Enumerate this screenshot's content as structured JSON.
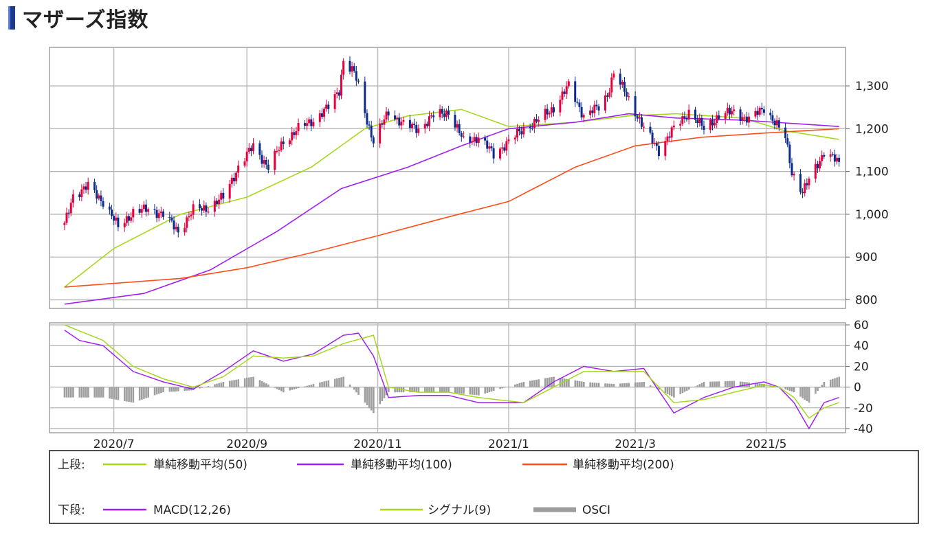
{
  "page": {
    "title": "マザーズ指数"
  },
  "colors": {
    "up_candle": "#e8003d",
    "down_candle": "#0b2a8c",
    "sma50": "#a6d81e",
    "sma100": "#a020f0",
    "sma200": "#ff4d1a",
    "macd": "#a020f0",
    "signal": "#a6d81e",
    "osci": "#9e9e9e",
    "grid": "#b5b5b5"
  },
  "legend": {
    "upper_label": "上段:",
    "lower_label": "下段:",
    "sma50": "単純移動平均(50)",
    "sma100": "単純移動平均(100)",
    "sma200": "単純移動平均(200)",
    "macd": "MACD(12,26)",
    "signal": "シグナル(9)",
    "osci": "OSCI"
  },
  "chart_data": [
    {
      "type": "candlestick",
      "panel": "upper",
      "ylim": [
        780,
        1390
      ],
      "yticks": [
        "800",
        "900",
        "1,000",
        "1,100",
        "1,200",
        "1,300"
      ],
      "ytick_values": [
        800,
        900,
        1000,
        1100,
        1200,
        1300
      ],
      "x_range": [
        "2020-06-01",
        "2021-06-07"
      ],
      "xticks": [
        "2020/7",
        "2020/9",
        "2020/11",
        "2021/1",
        "2021/3",
        "2021/5"
      ],
      "xtick_dates": [
        "2020-07-01",
        "2020-09-01",
        "2020-11-01",
        "2021-01-01",
        "2021-03-01",
        "2021-05-01"
      ],
      "close_series": {
        "dates": [
          "2020-06-08",
          "2020-06-12",
          "2020-06-19",
          "2020-06-26",
          "2020-07-03",
          "2020-07-10",
          "2020-07-17",
          "2020-07-24",
          "2020-07-31",
          "2020-08-07",
          "2020-08-14",
          "2020-08-21",
          "2020-08-28",
          "2020-09-04",
          "2020-09-11",
          "2020-09-18",
          "2020-09-25",
          "2020-10-02",
          "2020-10-09",
          "2020-10-14",
          "2020-10-16",
          "2020-10-21",
          "2020-10-23",
          "2020-10-27",
          "2020-10-30",
          "2020-11-06",
          "2020-11-13",
          "2020-11-20",
          "2020-11-27",
          "2020-12-04",
          "2020-12-11",
          "2020-12-18",
          "2020-12-25",
          "2021-01-08",
          "2021-01-15",
          "2021-01-22",
          "2021-01-29",
          "2021-02-05",
          "2021-02-12",
          "2021-02-16",
          "2021-02-19",
          "2021-02-26",
          "2021-03-05",
          "2021-03-12",
          "2021-03-19",
          "2021-03-26",
          "2021-04-02",
          "2021-04-09",
          "2021-04-16",
          "2021-04-23",
          "2021-04-30",
          "2021-05-07",
          "2021-05-10",
          "2021-05-13",
          "2021-05-18",
          "2021-05-24",
          "2021-05-28",
          "2021-06-04"
        ],
        "close": [
          975,
          1045,
          1065,
          1030,
          970,
          1005,
          1012,
          1000,
          960,
          1010,
          1015,
          1040,
          1110,
          1160,
          1110,
          1170,
          1200,
          1220,
          1250,
          1290,
          1360,
          1330,
          1300,
          1220,
          1170,
          1240,
          1210,
          1200,
          1230,
          1240,
          1170,
          1180,
          1140,
          1200,
          1220,
          1250,
          1300,
          1230,
          1250,
          1280,
          1330,
          1270,
          1200,
          1150,
          1200,
          1240,
          1200,
          1230,
          1240,
          1220,
          1250,
          1200,
          1180,
          1100,
          1050,
          1110,
          1145,
          1120
        ]
      },
      "series": [
        {
          "name": "単純移動平均(50)",
          "dates": [
            "2020-06-08",
            "2020-07-01",
            "2020-08-01",
            "2020-09-01",
            "2020-10-01",
            "2020-10-26",
            "2020-11-15",
            "2020-12-10",
            "2021-01-01",
            "2021-02-01",
            "2021-02-26",
            "2021-03-20",
            "2021-04-20",
            "2021-05-10",
            "2021-06-04"
          ],
          "values": [
            830,
            920,
            1000,
            1040,
            1110,
            1200,
            1230,
            1245,
            1205,
            1215,
            1230,
            1235,
            1225,
            1195,
            1175
          ]
        },
        {
          "name": "単純移動平均(100)",
          "dates": [
            "2020-06-08",
            "2020-07-15",
            "2020-08-15",
            "2020-09-15",
            "2020-10-15",
            "2020-11-15",
            "2020-12-10",
            "2021-01-01",
            "2021-02-01",
            "2021-02-26",
            "2021-03-20",
            "2021-04-20",
            "2021-05-20",
            "2021-06-04"
          ],
          "values": [
            790,
            815,
            870,
            960,
            1060,
            1110,
            1160,
            1200,
            1215,
            1235,
            1225,
            1220,
            1210,
            1205
          ]
        },
        {
          "name": "単純移動平均(200)",
          "dates": [
            "2020-06-08",
            "2020-08-01",
            "2020-09-01",
            "2020-10-01",
            "2020-11-01",
            "2020-12-01",
            "2021-01-01",
            "2021-02-01",
            "2021-03-01",
            "2021-04-01",
            "2021-05-01",
            "2021-06-04"
          ],
          "values": [
            830,
            850,
            875,
            910,
            950,
            990,
            1030,
            1110,
            1160,
            1180,
            1190,
            1200
          ]
        }
      ]
    },
    {
      "type": "line",
      "panel": "lower",
      "ylim": [
        -44,
        62
      ],
      "yticks": [
        "-40",
        "-20",
        "0",
        "20",
        "40",
        "60"
      ],
      "ytick_values": [
        -40,
        -20,
        0,
        20,
        40,
        60
      ],
      "series": [
        {
          "name": "MACD(12,26)",
          "dates": [
            "2020-06-08",
            "2020-06-15",
            "2020-06-26",
            "2020-07-10",
            "2020-07-24",
            "2020-08-07",
            "2020-08-21",
            "2020-09-04",
            "2020-09-18",
            "2020-10-02",
            "2020-10-16",
            "2020-10-23",
            "2020-10-30",
            "2020-11-06",
            "2020-11-20",
            "2020-12-04",
            "2020-12-18",
            "2021-01-08",
            "2021-01-22",
            "2021-02-05",
            "2021-02-19",
            "2021-03-05",
            "2021-03-19",
            "2021-04-02",
            "2021-04-16",
            "2021-04-30",
            "2021-05-07",
            "2021-05-14",
            "2021-05-21",
            "2021-05-28",
            "2021-06-04"
          ],
          "values": [
            55,
            45,
            40,
            15,
            5,
            -2,
            15,
            35,
            25,
            32,
            50,
            52,
            30,
            -10,
            -8,
            -8,
            -15,
            -15,
            5,
            20,
            15,
            18,
            -25,
            -10,
            0,
            5,
            0,
            -15,
            -40,
            -15,
            -10
          ]
        },
        {
          "name": "シグナル(9)",
          "dates": [
            "2020-06-08",
            "2020-06-26",
            "2020-07-10",
            "2020-07-24",
            "2020-08-07",
            "2020-08-21",
            "2020-09-04",
            "2020-09-18",
            "2020-10-02",
            "2020-10-16",
            "2020-10-30",
            "2020-11-06",
            "2020-11-20",
            "2020-12-04",
            "2020-12-18",
            "2021-01-08",
            "2021-01-22",
            "2021-02-05",
            "2021-02-19",
            "2021-03-05",
            "2021-03-19",
            "2021-04-02",
            "2021-04-16",
            "2021-04-30",
            "2021-05-07",
            "2021-05-14",
            "2021-05-21",
            "2021-05-28",
            "2021-06-04"
          ],
          "values": [
            60,
            45,
            20,
            8,
            0,
            10,
            30,
            28,
            30,
            42,
            50,
            0,
            -5,
            -5,
            -10,
            -15,
            0,
            15,
            15,
            15,
            -15,
            -12,
            -5,
            2,
            0,
            -10,
            -30,
            -20,
            -15
          ]
        },
        {
          "name": "OSCI",
          "dates": [
            "2020-06-08",
            "2020-06-26",
            "2020-07-10",
            "2020-07-24",
            "2020-08-07",
            "2020-08-21",
            "2020-09-04",
            "2020-09-18",
            "2020-10-02",
            "2020-10-16",
            "2020-10-30",
            "2020-11-06",
            "2020-11-20",
            "2020-12-04",
            "2020-12-18",
            "2021-01-08",
            "2021-01-22",
            "2021-02-05",
            "2021-02-19",
            "2021-03-05",
            "2021-03-19",
            "2021-04-02",
            "2021-04-16",
            "2021-04-30",
            "2021-05-07",
            "2021-05-14",
            "2021-05-21",
            "2021-05-28",
            "2021-06-04"
          ],
          "values": [
            -10,
            -10,
            -15,
            -5,
            -3,
            5,
            10,
            -5,
            3,
            10,
            -25,
            -5,
            -5,
            -5,
            -8,
            5,
            10,
            5,
            3,
            5,
            -10,
            5,
            6,
            3,
            0,
            -5,
            -15,
            5,
            10
          ]
        }
      ]
    }
  ]
}
